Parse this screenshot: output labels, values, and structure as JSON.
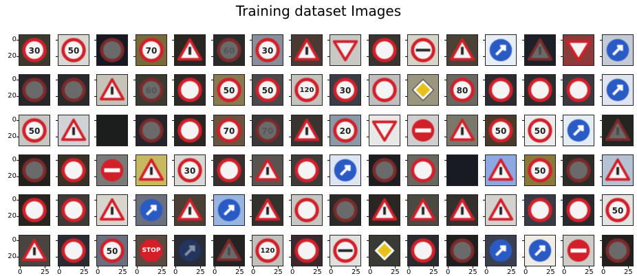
{
  "title": "Training dataset Images",
  "axis_ticks": {
    "y": [
      "0",
      "20"
    ],
    "x": [
      "0",
      "25"
    ],
    "edge_left": "2",
    "edge_right": "20"
  },
  "grid": {
    "rows": 6,
    "cols": 16
  },
  "images": [
    {
      "bg": "#3c3a2e",
      "sign": "circle",
      "label": "30"
    },
    {
      "bg": "#d9d8d2",
      "sign": "circle",
      "label": "50"
    },
    {
      "bg": "#181822",
      "sign": "circle",
      "label": "",
      "dark": true
    },
    {
      "bg": "#7a6a3a",
      "sign": "circle",
      "label": "70"
    },
    {
      "bg": "#2a2622",
      "sign": "triangle",
      "label": ""
    },
    {
      "bg": "#2a2a2a",
      "sign": "circle",
      "label": "60",
      "dark": true
    },
    {
      "bg": "#8a8e9a",
      "sign": "circle",
      "label": "30"
    },
    {
      "bg": "#4a3a34",
      "sign": "triangle",
      "label": ""
    },
    {
      "bg": "#c8c8c4",
      "sign": "yield",
      "label": ""
    },
    {
      "bg": "#3a3430",
      "sign": "circle",
      "label": ""
    },
    {
      "bg": "#d6d4c8",
      "sign": "noentrybar",
      "label": ""
    },
    {
      "bg": "#4a4236",
      "sign": "triangle",
      "label": ""
    },
    {
      "bg": "#e8eef6",
      "sign": "blue",
      "label": ""
    },
    {
      "bg": "#1e2028",
      "sign": "triangle",
      "label": "",
      "dark": true
    },
    {
      "bg": "#8c3a3a",
      "sign": "yield",
      "label": ""
    },
    {
      "bg": "#c4cad6",
      "sign": "blue",
      "label": ""
    },
    {
      "bg": "#28262a",
      "sign": "circle",
      "label": "",
      "dark": true
    },
    {
      "bg": "#2a2a2c",
      "sign": "circle",
      "label": "",
      "dark": true
    },
    {
      "bg": "#c6c4b8",
      "sign": "triangle",
      "label": ""
    },
    {
      "bg": "#3a3a30",
      "sign": "circle",
      "label": "60",
      "dark": true
    },
    {
      "bg": "#2e2a28",
      "sign": "circle",
      "label": ""
    },
    {
      "bg": "#8a7a52",
      "sign": "circle",
      "label": "50"
    },
    {
      "bg": "#4a4a4c",
      "sign": "circle",
      "label": "50"
    },
    {
      "bg": "#c4c2bc",
      "sign": "circle",
      "label": "120"
    },
    {
      "bg": "#3a3c46",
      "sign": "circle",
      "label": "30"
    },
    {
      "bg": "#bfbfbf",
      "sign": "circle",
      "label": ""
    },
    {
      "bg": "#9a9680",
      "sign": "diamond",
      "label": ""
    },
    {
      "bg": "#6a6660",
      "sign": "circle",
      "label": "80"
    },
    {
      "bg": "#2c2c30",
      "sign": "circle",
      "label": ""
    },
    {
      "bg": "#2a2c2e",
      "sign": "circle",
      "label": ""
    },
    {
      "bg": "#3a3a40",
      "sign": "circle",
      "label": ""
    },
    {
      "bg": "#dfe4ee",
      "sign": "blue",
      "label": ""
    },
    {
      "bg": "#c8c6c2",
      "sign": "circle",
      "label": "50"
    },
    {
      "bg": "#d0d2d6",
      "sign": "triangle",
      "label": ""
    },
    {
      "bg": "#1c1e1e",
      "sign": "none",
      "label": ""
    },
    {
      "bg": "#26242a",
      "sign": "circle",
      "label": "",
      "dark": true
    },
    {
      "bg": "#2a2624",
      "sign": "circle",
      "label": ""
    },
    {
      "bg": "#6a5440",
      "sign": "circle",
      "label": "70"
    },
    {
      "bg": "#3a3838",
      "sign": "circle",
      "label": "70",
      "dark": true
    },
    {
      "bg": "#3a3430",
      "sign": "triangle",
      "label": ""
    },
    {
      "bg": "#8a9aa8",
      "sign": "circle",
      "label": "20"
    },
    {
      "bg": "#e8e8e6",
      "sign": "yield",
      "label": ""
    },
    {
      "bg": "#cfcfcf",
      "sign": "noentry",
      "label": ""
    },
    {
      "bg": "#7a786a",
      "sign": "triangle",
      "label": ""
    },
    {
      "bg": "#4a3a2a",
      "sign": "circle",
      "label": "50"
    },
    {
      "bg": "#ececec",
      "sign": "circle",
      "label": "50"
    },
    {
      "bg": "#e4ecf4",
      "sign": "blue",
      "label": ""
    },
    {
      "bg": "#242420",
      "sign": "triangle",
      "label": "",
      "dark": true
    },
    {
      "bg": "#24201e",
      "sign": "circle",
      "label": "",
      "dark": true
    },
    {
      "bg": "#3a3224",
      "sign": "circle",
      "label": ""
    },
    {
      "bg": "#7a7a78",
      "sign": "noentry",
      "label": ""
    },
    {
      "bg": "#c8b860",
      "sign": "triangle",
      "label": ""
    },
    {
      "bg": "#d8d8d4",
      "sign": "circle",
      "label": "30"
    },
    {
      "bg": "#3a3230",
      "sign": "circle",
      "label": ""
    },
    {
      "bg": "#5a5450",
      "sign": "triangle",
      "label": ""
    },
    {
      "bg": "#3e3c3a",
      "sign": "circle",
      "label": ""
    },
    {
      "bg": "#dde6f2",
      "sign": "blue",
      "label": ""
    },
    {
      "bg": "#1e1e22",
      "sign": "circle",
      "label": "",
      "dark": true
    },
    {
      "bg": "#6a6660",
      "sign": "circle",
      "label": ""
    },
    {
      "bg": "#181a24",
      "sign": "none",
      "label": ""
    },
    {
      "bg": "#8ea8e6",
      "sign": "triangle",
      "label": ""
    },
    {
      "bg": "#8a7a3a",
      "sign": "circle",
      "label": "50"
    },
    {
      "bg": "#2e2c28",
      "sign": "circle",
      "label": "",
      "dark": true
    },
    {
      "bg": "#b4c2d4",
      "sign": "triangle",
      "label": ""
    },
    {
      "bg": "#2a2420",
      "sign": "circle",
      "label": ""
    },
    {
      "bg": "#3e3a36",
      "sign": "circle",
      "label": ""
    },
    {
      "bg": "#d8d6cc",
      "sign": "triangle",
      "label": ""
    },
    {
      "bg": "#6a7080",
      "sign": "blue",
      "label": ""
    },
    {
      "bg": "#4a4036",
      "sign": "triangle",
      "label": ""
    },
    {
      "bg": "#9ab4e0",
      "sign": "blue",
      "label": ""
    },
    {
      "bg": "#34322e",
      "sign": "triangle",
      "label": ""
    },
    {
      "bg": "#c6c6c2",
      "sign": "circle",
      "label": ""
    },
    {
      "bg": "#2a2a28",
      "sign": "circle",
      "label": "",
      "dark": true
    },
    {
      "bg": "#2a2624",
      "sign": "triangle",
      "label": ""
    },
    {
      "bg": "#4a4a42",
      "sign": "triangle",
      "label": ""
    },
    {
      "bg": "#34302e",
      "sign": "triangle",
      "label": ""
    },
    {
      "bg": "#d4d2ce",
      "sign": "triangle",
      "label": ""
    },
    {
      "bg": "#3a3a46",
      "sign": "circle",
      "label": ""
    },
    {
      "bg": "#2a2a2e",
      "sign": "circle",
      "label": ""
    },
    {
      "bg": "#e2e2e0",
      "sign": "circle",
      "label": "50"
    },
    {
      "bg": "#4a4440",
      "sign": "triangle",
      "label": ""
    },
    {
      "bg": "#2a2c34",
      "sign": "circle",
      "label": ""
    },
    {
      "bg": "#6a6e7e",
      "sign": "circle",
      "label": "50"
    },
    {
      "bg": "#5a4a40",
      "sign": "stop",
      "label": "STOP"
    },
    {
      "bg": "#2a2c36",
      "sign": "blue",
      "label": "",
      "dark": true
    },
    {
      "bg": "#242222",
      "sign": "triangle",
      "label": "",
      "dark": true
    },
    {
      "bg": "#c2c0bc",
      "sign": "circle",
      "label": "120"
    },
    {
      "bg": "#3a2a30",
      "sign": "circle",
      "label": ""
    },
    {
      "bg": "#e0e0de",
      "sign": "noentrybar",
      "label": ""
    },
    {
      "bg": "#3a3a34",
      "sign": "diamond",
      "label": ""
    },
    {
      "bg": "#2a2a30",
      "sign": "circle",
      "label": ""
    },
    {
      "bg": "#201e1e",
      "sign": "circle",
      "label": "",
      "dark": true
    },
    {
      "bg": "#3a4050",
      "sign": "blue",
      "label": ""
    },
    {
      "bg": "#f0ece6",
      "sign": "blue",
      "label": ""
    },
    {
      "bg": "#cfcdc8",
      "sign": "noentry",
      "label": ""
    },
    {
      "bg": "#24201e",
      "sign": "circle",
      "label": "",
      "dark": true
    }
  ]
}
